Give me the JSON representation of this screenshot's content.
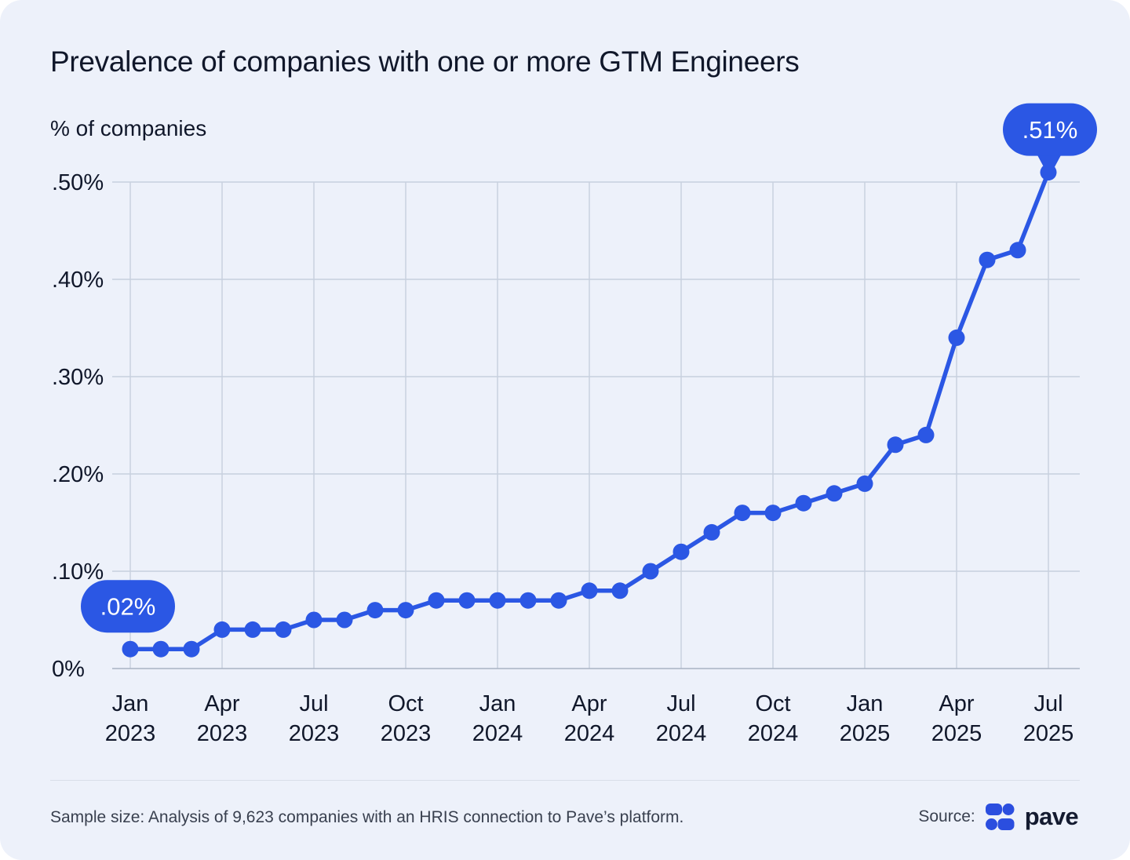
{
  "header": {
    "title": "Prevalence of companies with one or more GTM Engineers",
    "y_axis_label": "% of companies"
  },
  "chart_data": {
    "type": "line",
    "title": "Prevalence of companies with one or more GTM Engineers",
    "xlabel": "",
    "ylabel": "% of companies",
    "x": [
      "Jan 2023",
      "Feb 2023",
      "Mar 2023",
      "Apr 2023",
      "May 2023",
      "Jun 2023",
      "Jul 2023",
      "Aug 2023",
      "Sep 2023",
      "Oct 2023",
      "Nov 2023",
      "Dec 2023",
      "Jan 2024",
      "Feb 2024",
      "Mar 2024",
      "Apr 2024",
      "May 2024",
      "Jun 2024",
      "Jul 2024",
      "Aug 2024",
      "Sep 2024",
      "Oct 2024",
      "Nov 2024",
      "Dec 2024",
      "Jan 2025",
      "Feb 2025",
      "Mar 2025",
      "Apr 2025",
      "May 2025",
      "Jun 2025",
      "Jul 2025"
    ],
    "values": [
      0.02,
      0.02,
      0.02,
      0.04,
      0.04,
      0.04,
      0.05,
      0.05,
      0.06,
      0.06,
      0.07,
      0.07,
      0.07,
      0.07,
      0.07,
      0.08,
      0.08,
      0.1,
      0.12,
      0.14,
      0.16,
      0.16,
      0.17,
      0.18,
      0.19,
      0.23,
      0.24,
      0.34,
      0.42,
      0.43,
      0.51
    ],
    "ylim": [
      0,
      0.55
    ],
    "grid": true,
    "legend": "none",
    "y_ticks": [
      {
        "value": 0.0,
        "label": "0%"
      },
      {
        "value": 0.1,
        "label": ".10%"
      },
      {
        "value": 0.2,
        "label": ".20%"
      },
      {
        "value": 0.3,
        "label": ".30%"
      },
      {
        "value": 0.4,
        "label": ".40%"
      },
      {
        "value": 0.5,
        "label": ".50%"
      }
    ],
    "x_ticks": [
      {
        "index": 0,
        "month": "Jan",
        "year": "2023"
      },
      {
        "index": 3,
        "month": "Apr",
        "year": "2023"
      },
      {
        "index": 6,
        "month": "Jul",
        "year": "2023"
      },
      {
        "index": 9,
        "month": "Oct",
        "year": "2023"
      },
      {
        "index": 12,
        "month": "Jan",
        "year": "2024"
      },
      {
        "index": 15,
        "month": "Apr",
        "year": "2024"
      },
      {
        "index": 18,
        "month": "Jul",
        "year": "2024"
      },
      {
        "index": 21,
        "month": "Oct",
        "year": "2024"
      },
      {
        "index": 24,
        "month": "Jan",
        "year": "2025"
      },
      {
        "index": 27,
        "month": "Apr",
        "year": "2025"
      },
      {
        "index": 30,
        "month": "Jul",
        "year": "2025"
      }
    ],
    "annotations": [
      {
        "label": ".02%",
        "point_index": 0,
        "placement": "above-left",
        "tail": false
      },
      {
        "label": ".51%",
        "point_index": 30,
        "placement": "above",
        "tail": true
      }
    ]
  },
  "footer": {
    "sample_note": "Sample size: Analysis of 9,623 companies with an HRIS connection to Pave’s platform.",
    "source_label": "Source:",
    "brand": "pave"
  },
  "colors": {
    "accent_blue": "#2B57E4",
    "logo_blue": "#2B4EDF",
    "card_bg": "#EDF1FA",
    "grid": "#C7CFDE",
    "axis_line": "#A9B2C3",
    "text_dark": "#10172A",
    "text_muted": "#39404F",
    "brand_navy": "#141B30",
    "divider": "#D9DEE9",
    "badge_text": "#FFFFFF"
  }
}
